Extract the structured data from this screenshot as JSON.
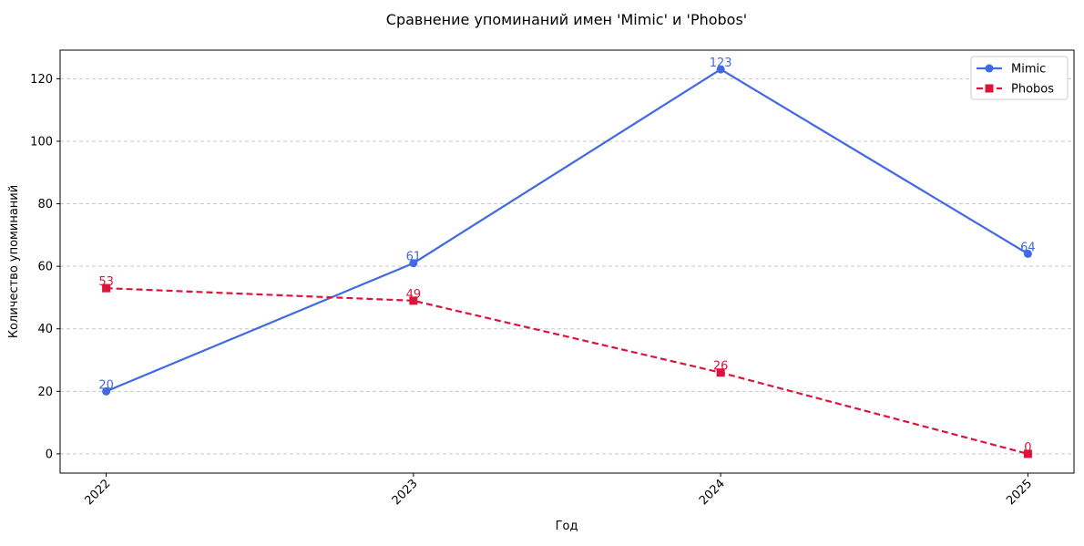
{
  "chart_data": {
    "type": "line",
    "title": "Сравнение упоминаний имен 'Mimic' и 'Phobos'",
    "x_label": "Год",
    "y_label": "Количество упоминаний",
    "x": [
      2022,
      2023,
      2024,
      2025
    ],
    "series": [
      {
        "name": "Mimic",
        "color": "#4169e1",
        "marker": "circle",
        "dash": "solid",
        "values": [
          20,
          61,
          123,
          64
        ]
      },
      {
        "name": "Phobos",
        "color": "#dc143c",
        "marker": "square",
        "dash": "dashed",
        "values": [
          53,
          49,
          26,
          0
        ]
      }
    ],
    "xlim": [
      2021.85,
      2025.15
    ],
    "xticks": [
      2022,
      2023,
      2024,
      2025
    ],
    "ylim": [
      -6.15,
      129.15
    ],
    "yticks": [
      0,
      20,
      40,
      60,
      80,
      100,
      120
    ],
    "grid": "y",
    "legend": "upper right",
    "data_labels": true
  }
}
